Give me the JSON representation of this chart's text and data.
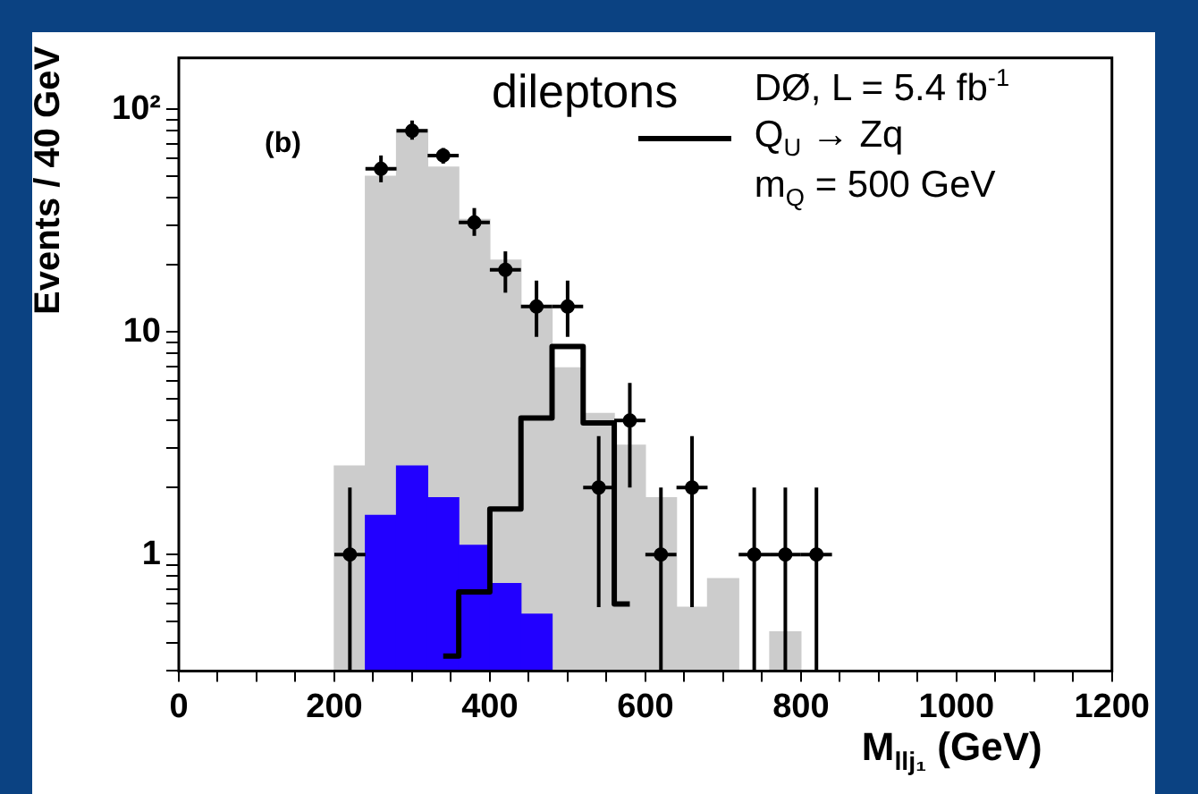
{
  "chart_data": {
    "type": "histogram",
    "xlabel": "M$_{llj₁}$ (GeV)",
    "ylabel": "Events / 40 GeV",
    "annotations": [
      "dileptons",
      "(b)",
      "DØ, L = 5.4 fb$^{-1}$",
      "m$_{Q}$ = 500 GeV"
    ],
    "bins": [
      200,
      240,
      280,
      320,
      360,
      400,
      440,
      480,
      520,
      560,
      600,
      640,
      680,
      720,
      760,
      800,
      840
    ],
    "series": [
      {
        "color": "#cccccc",
        "values": [
          2.5,
          50,
          81,
          55,
          32,
          21,
          13,
          6.9,
          4.3,
          3.1,
          1.8,
          0.58,
          0.78,
          null,
          0.45,
          null
        ]
      },
      {
        "color": "#2200ff",
        "values": [
          null,
          1.5,
          2.5,
          1.8,
          1.1,
          0.74,
          0.54,
          null,
          null,
          null,
          null,
          null,
          null,
          null,
          null,
          null
        ]
      },
      {
        "type": "step",
        "name": "Q$_{U}$ → Zq",
        "color": "#000000",
        "x": [
          340,
          380,
          420,
          460,
          500,
          540,
          580
        ],
        "values": [
          0.35,
          0.68,
          1.6,
          4.1,
          8.6,
          3.9,
          0.6
        ]
      },
      {
        "type": "scatter",
        "color": "#000000",
        "marker": "circle",
        "x": [
          220,
          260,
          300,
          340,
          380,
          420,
          460,
          500,
          540,
          580,
          620,
          660,
          740,
          780,
          820
        ],
        "values": [
          1,
          54,
          80,
          62,
          31,
          19,
          13,
          13,
          2,
          4,
          1,
          2,
          1,
          1,
          1
        ],
        "errors": [
          [
            0.3,
            2
          ],
          [
            47,
            62
          ],
          [
            73,
            89
          ],
          [
            57,
            67
          ],
          [
            27,
            36
          ],
          [
            15,
            23
          ],
          [
            9.5,
            17
          ],
          [
            9.5,
            17
          ],
          [
            0.58,
            3.4
          ],
          [
            2,
            5.9
          ],
          [
            0.3,
            2
          ],
          [
            0.58,
            3.4
          ],
          [
            0.3,
            2
          ],
          [
            0.3,
            2
          ],
          [
            0.3,
            2
          ]
        ],
        "xerrors": [
          20,
          20,
          20,
          20,
          20,
          20,
          20,
          20,
          20,
          20,
          20,
          20,
          20,
          20,
          20
        ]
      }
    ],
    "log": true,
    "legend": "top right",
    "grid": false,
    "xlim": [
      0,
      1200
    ],
    "xticks": [
      0,
      {
        "value": 50,
        "label": null
      },
      {
        "value": 100,
        "label": null
      },
      {
        "value": 150,
        "label": null
      },
      200,
      {
        "value": 250,
        "label": null
      },
      {
        "value": 300,
        "label": null
      },
      {
        "value": 350,
        "label": null
      },
      400,
      {
        "value": 450,
        "label": null
      },
      {
        "value": 500,
        "label": null
      },
      {
        "value": 550,
        "label": null
      },
      600,
      {
        "value": 650,
        "label": null
      },
      {
        "value": 700,
        "label": null
      },
      {
        "value": 750,
        "label": null
      },
      800,
      {
        "value": 850,
        "label": null
      },
      {
        "value": 900,
        "label": null
      },
      {
        "value": 950,
        "label": null
      },
      1000,
      {
        "value": 1050,
        "label": null
      },
      {
        "value": 1100,
        "label": null
      },
      {
        "value": 1150,
        "label": null
      },
      1200
    ],
    "ylim": [
      0.3,
      170
    ],
    "yticks": [
      {
        "value": 0.3,
        "label": null
      },
      {
        "value": 0.4,
        "label": null
      },
      {
        "value": 0.5,
        "label": null
      },
      {
        "value": 0.6,
        "label": null
      },
      {
        "value": 0.7,
        "label": null
      },
      {
        "value": 0.8,
        "label": null
      },
      {
        "value": 0.9,
        "label": null
      },
      1,
      {
        "value": 2,
        "label": null
      },
      {
        "value": 3,
        "label": null
      },
      {
        "value": 4,
        "label": null
      },
      {
        "value": 5,
        "label": null
      },
      {
        "value": 6,
        "label": null
      },
      {
        "value": 7,
        "label": null
      },
      {
        "value": 8,
        "label": null
      },
      {
        "value": 9,
        "label": null
      },
      10,
      {
        "value": 20,
        "label": null
      },
      {
        "value": 30,
        "label": null
      },
      {
        "value": 40,
        "label": null
      },
      {
        "value": 50,
        "label": null
      },
      {
        "value": 60,
        "label": null
      },
      {
        "value": 70,
        "label": null
      },
      {
        "value": 80,
        "label": null
      },
      {
        "value": 90,
        "label": null
      },
      {
        "value": 100,
        "label": "10²"
      }
    ]
  }
}
